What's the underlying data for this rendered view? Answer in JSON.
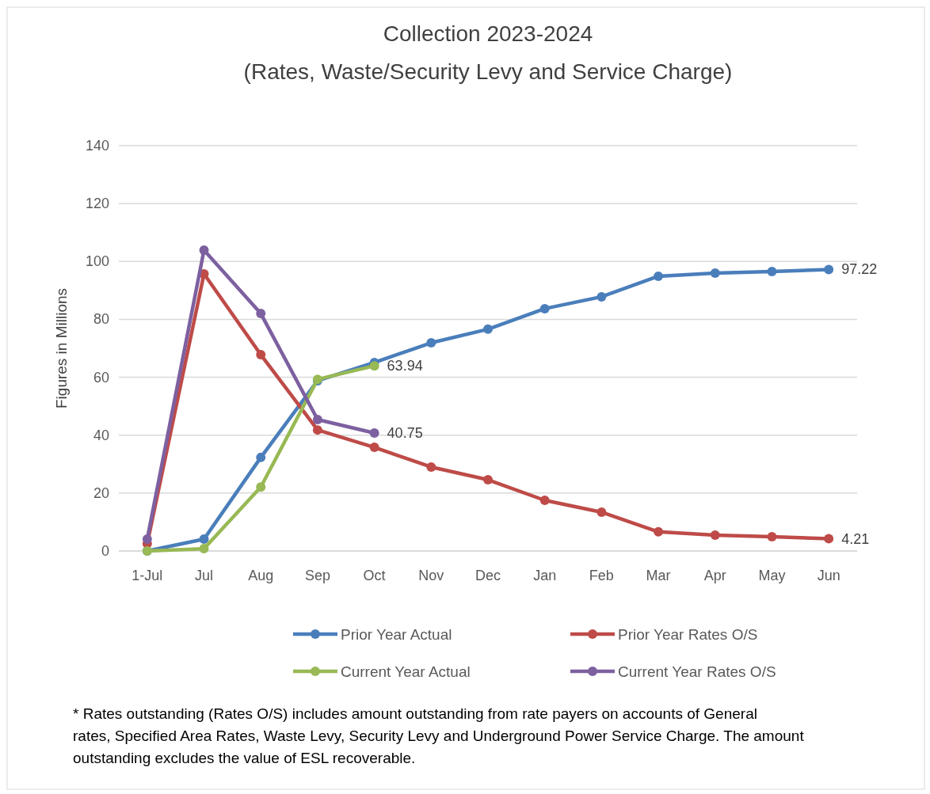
{
  "chart_data": {
    "type": "line",
    "title": "Collection 2023-2024\n(Rates, Waste/Security Levy and Service Charge)",
    "ylabel": "Figures in Millions",
    "categories": [
      "1-Jul",
      "Jul",
      "Aug",
      "Sep",
      "Oct",
      "Nov",
      "Dec",
      "Jan",
      "Feb",
      "Mar",
      "Apr",
      "May",
      "Jun"
    ],
    "series": [
      {
        "name": "Prior Year Actual",
        "color": "#4a7ebb",
        "values": [
          0,
          4.1,
          32.3,
          58.8,
          65.1,
          71.9,
          76.6,
          83.7,
          87.8,
          94.9,
          96,
          96.5,
          97.22
        ],
        "value_labels": [
          null,
          null,
          null,
          null,
          null,
          null,
          null,
          null,
          null,
          null,
          null,
          null,
          "97.22"
        ]
      },
      {
        "name": "Prior Year Rates O/S",
        "color": "#be4b48",
        "values": [
          2.5,
          95.7,
          67.8,
          41.8,
          35.8,
          29,
          24.6,
          17.5,
          13.4,
          6.6,
          5.5,
          4.9,
          4.21
        ],
        "value_labels": [
          null,
          null,
          null,
          null,
          null,
          null,
          null,
          null,
          null,
          null,
          null,
          null,
          "4.21"
        ]
      },
      {
        "name": "Current Year Actual",
        "color": "#98b954",
        "values": [
          0,
          0.8,
          22.1,
          59.3,
          63.94,
          null,
          null,
          null,
          null,
          null,
          null,
          null,
          null
        ],
        "value_labels": [
          null,
          null,
          null,
          null,
          "63.94",
          null,
          null,
          null,
          null,
          null,
          null,
          null,
          null
        ]
      },
      {
        "name": "Current Year Rates O/S",
        "color": "#7d60a0",
        "values": [
          4.1,
          103.9,
          82,
          45.4,
          40.75,
          null,
          null,
          null,
          null,
          null,
          null,
          null,
          null
        ],
        "value_labels": [
          null,
          null,
          null,
          null,
          "40.75",
          null,
          null,
          null,
          null,
          null,
          null,
          null,
          null
        ]
      }
    ],
    "ylim": [
      0,
      140
    ],
    "yticks": [
      0,
      20,
      40,
      60,
      80,
      100,
      120,
      140
    ],
    "grid": "y",
    "legend": "bottom",
    "marker": "circle",
    "line_style": "solid",
    "annotations": [
      "* Rates outstanding (Rates O/S) includes amount outstanding from rate payers on accounts of General rates, Specified Area Rates, Waste Levy, Security Levy and Underground Power Service Charge. The amount outstanding excludes the value of ESL recoverable."
    ]
  }
}
